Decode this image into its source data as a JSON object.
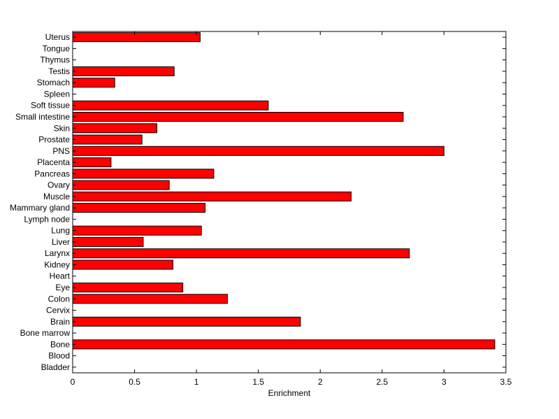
{
  "chart_data": {
    "type": "bar",
    "orientation": "horizontal",
    "title": "",
    "xlabel": "Enrichment",
    "ylabel": "",
    "xlim": [
      0,
      3.5
    ],
    "xticks": [
      0,
      0.5,
      1,
      1.5,
      2,
      2.5,
      3,
      3.5
    ],
    "xtick_labels": [
      "0",
      "0.5",
      "1",
      "1.5",
      "2",
      "2.5",
      "3",
      "3.5"
    ],
    "grid": false,
    "legend": "none",
    "bar_color": "#ff0000",
    "categories": [
      "Bladder",
      "Blood",
      "Bone",
      "Bone marrow",
      "Brain",
      "Cervix",
      "Colon",
      "Eye",
      "Heart",
      "Kidney",
      "Larynx",
      "Liver",
      "Lung",
      "Lymph node",
      "Mammary gland",
      "Muscle",
      "Ovary",
      "Pancreas",
      "Placenta",
      "PNS",
      "Prostate",
      "Skin",
      "Small intestine",
      "Soft tissue",
      "Spleen",
      "Stomach",
      "Testis",
      "Thymus",
      "Tongue",
      "Uterus"
    ],
    "values": [
      0,
      0,
      3.41,
      0,
      1.84,
      0,
      1.25,
      0.89,
      0,
      0.81,
      2.72,
      0.57,
      1.04,
      0,
      1.07,
      2.25,
      0.78,
      1.14,
      0.31,
      3.0,
      0.56,
      0.68,
      2.67,
      1.58,
      0,
      0.34,
      0.82,
      0,
      0,
      1.03
    ]
  }
}
